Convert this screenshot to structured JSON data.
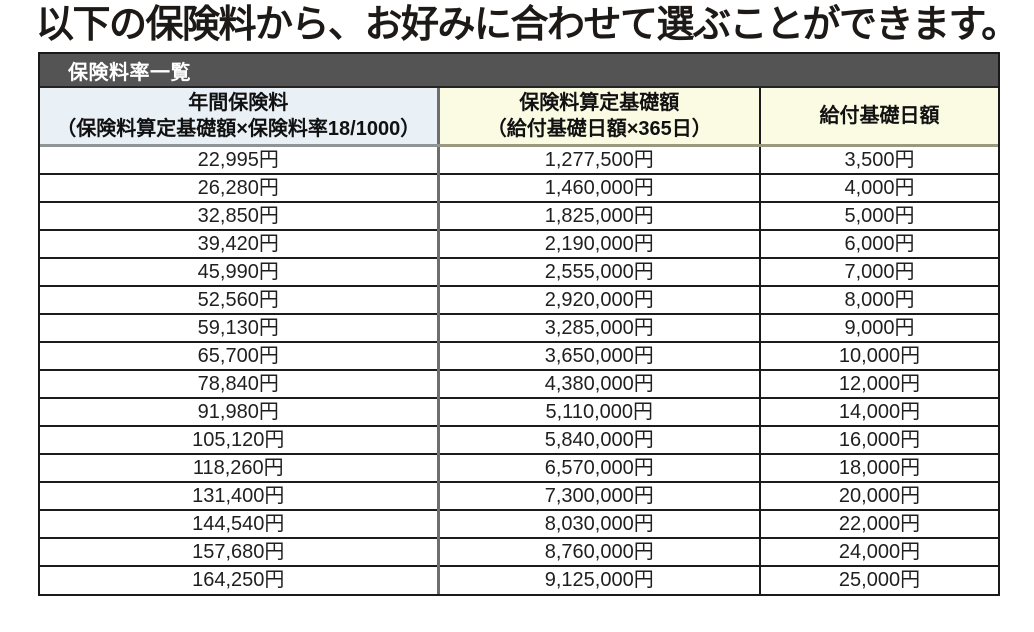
{
  "title": "以下の保険料から、お好みに合わせて選ぶことができます。",
  "table": {
    "caption": "保険料率一覧",
    "columns": [
      {
        "line1": "年間保険料",
        "line2": "（保険料算定基礎額×保険料率18/1000）"
      },
      {
        "line1": "保険料算定基礎額",
        "line2": "（給付基礎日額×365日）"
      },
      {
        "line1": "給付基礎日額",
        "line2": ""
      }
    ],
    "rows": [
      [
        "22,995円",
        "1,277,500円",
        "3,500円"
      ],
      [
        "26,280円",
        "1,460,000円",
        "4,000円"
      ],
      [
        "32,850円",
        "1,825,000円",
        "5,000円"
      ],
      [
        "39,420円",
        "2,190,000円",
        "6,000円"
      ],
      [
        "45,990円",
        "2,555,000円",
        "7,000円"
      ],
      [
        "52,560円",
        "2,920,000円",
        "8,000円"
      ],
      [
        "59,130円",
        "3,285,000円",
        "9,000円"
      ],
      [
        "65,700円",
        "3,650,000円",
        "10,000円"
      ],
      [
        "78,840円",
        "4,380,000円",
        "12,000円"
      ],
      [
        "91,980円",
        "5,110,000円",
        "14,000円"
      ],
      [
        "105,120円",
        "5,840,000円",
        "16,000円"
      ],
      [
        "118,260円",
        "6,570,000円",
        "18,000円"
      ],
      [
        "131,400円",
        "7,300,000円",
        "20,000円"
      ],
      [
        "144,540円",
        "8,030,000円",
        "22,000円"
      ],
      [
        "157,680円",
        "8,760,000円",
        "24,000円"
      ],
      [
        "164,250円",
        "9,125,000円",
        "25,000円"
      ]
    ]
  },
  "colors": {
    "caption_bar_bg": "#545454",
    "caption_text": "#ffffff",
    "header_col1_bg": "#e9f1f6",
    "header_col2_3_bg": "#fbfae2",
    "outer_border": "#1a1a1a",
    "row_divider": "#1c1c1c",
    "col1_divider": "#6e6e6e",
    "header_underline": "#9b9880",
    "title_text": "#1c1916"
  }
}
